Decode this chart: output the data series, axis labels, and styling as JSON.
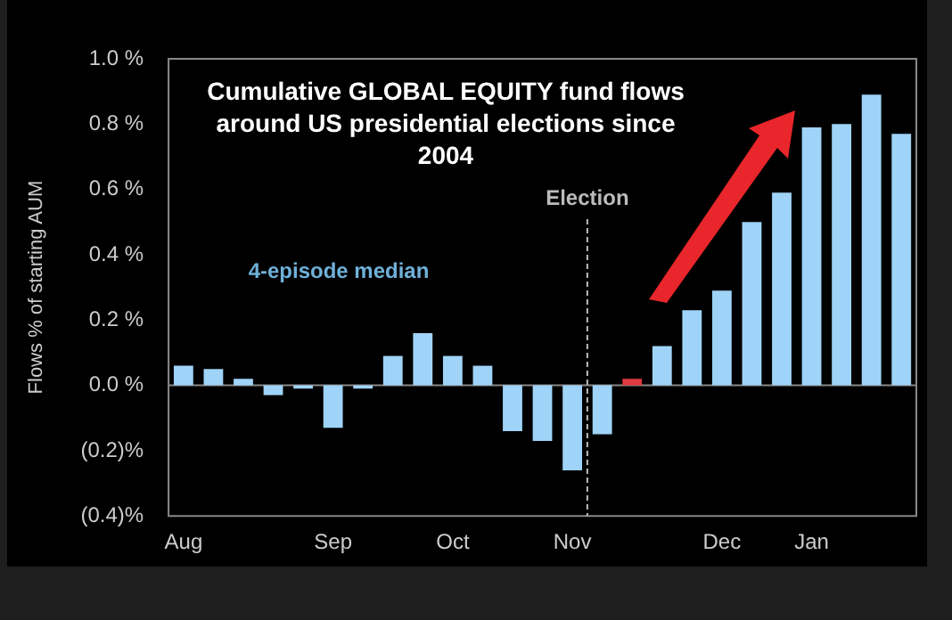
{
  "chart_data": {
    "type": "bar",
    "title": "Cumulative GLOBAL EQUITY fund flows around US presidential elections since 2004",
    "ylabel": "Flows % of starting AUM",
    "categories": [
      "Aug",
      null,
      null,
      null,
      null,
      "Sep",
      null,
      null,
      null,
      "Oct",
      null,
      null,
      null,
      "Nov",
      null,
      null,
      null,
      null,
      "Dec",
      null,
      null,
      "Jan",
      null,
      null,
      null
    ],
    "series": [
      {
        "colors": [
          "#9fd3f7",
          "#9fd3f7",
          "#9fd3f7",
          "#9fd3f7",
          "#9fd3f7",
          "#9fd3f7",
          "#9fd3f7",
          "#9fd3f7",
          "#9fd3f7",
          "#9fd3f7",
          "#9fd3f7",
          "#9fd3f7",
          "#9fd3f7",
          "#9fd3f7",
          "#9fd3f7",
          "#e0393e",
          "#9fd3f7",
          "#9fd3f7",
          "#9fd3f7",
          "#9fd3f7",
          "#9fd3f7",
          "#9fd3f7",
          "#9fd3f7",
          "#9fd3f7",
          "#9fd3f7"
        ],
        "values": [
          0.06,
          0.05,
          0.02,
          -0.03,
          -0.01,
          -0.13,
          -0.01,
          0.09,
          0.16,
          0.09,
          0.06,
          -0.14,
          -0.17,
          -0.26,
          -0.15,
          0.02,
          0.12,
          0.23,
          0.29,
          0.5,
          0.59,
          0.79,
          0.8,
          0.89,
          0.77
        ]
      }
    ],
    "ylim": [
      -0.4,
      1.0
    ],
    "yticks": [
      {
        "value": -0.4,
        "label": "(0.4)%"
      },
      {
        "value": -0.2,
        "label": "(0.2)%"
      },
      {
        "value": 0,
        "label": "0.0 %"
      },
      {
        "value": 0.2,
        "label": "0.2 %"
      },
      {
        "value": 0.4,
        "label": "0.4 %"
      },
      {
        "value": 0.6,
        "label": "0.6 %"
      },
      {
        "value": 0.8,
        "label": "0.8 %"
      },
      {
        "value": 1.0,
        "label": "1.0 %"
      }
    ],
    "ref_lines": [
      {
        "axis": "y",
        "value": 0,
        "color": "#888888",
        "line_style": "solid"
      },
      {
        "axis": "x",
        "value": "Nov",
        "label": "Election",
        "color": "#bbbbbb",
        "line_style": "dashed"
      }
    ],
    "annotations": [
      "4-episode median"
    ],
    "grid": false,
    "legend": false
  }
}
